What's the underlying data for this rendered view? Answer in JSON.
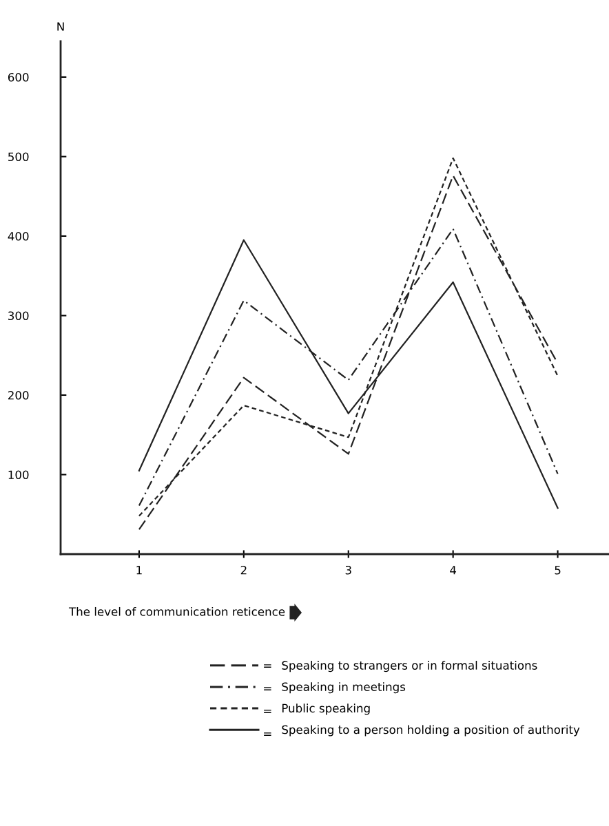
{
  "chart_data": {
    "type": "line",
    "ylabel": "N",
    "xlabel": "The level of communication reticence",
    "x": [
      1,
      2,
      3,
      4,
      5
    ],
    "xlim": [
      0.25,
      5.49
    ],
    "xticks": [
      1,
      2,
      3,
      4,
      5
    ],
    "ylim": [
      0,
      645
    ],
    "yticks": [
      100,
      200,
      300,
      400,
      500,
      600
    ],
    "grid": false,
    "legend": "bottom",
    "marker": "none",
    "annotations": [
      "=",
      "=",
      "=",
      "="
    ],
    "series": [
      {
        "name": "Speaking to strangers or in formal situations",
        "color": "#222222",
        "line_style": "dashed",
        "values": [
          31,
          222,
          126,
          476,
          240
        ]
      },
      {
        "name": "Speaking in meetings",
        "color": "#222222",
        "line_style": "dashdot",
        "values": [
          61,
          319,
          219,
          409,
          101
        ]
      },
      {
        "name": "Public speaking",
        "color": "#222222",
        "line_style": "dotted",
        "values": [
          48,
          187,
          147,
          498,
          224
        ]
      },
      {
        "name": "Speaking to a person holding a position of authority",
        "color": "#222222",
        "line_style": "solid",
        "values": [
          105,
          395,
          177,
          342,
          58
        ]
      }
    ]
  }
}
